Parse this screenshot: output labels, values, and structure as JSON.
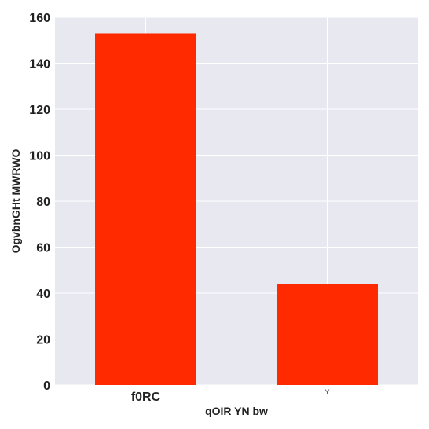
{
  "chart_data": {
    "type": "bar",
    "categories": [
      "f0RC",
      "Y"
    ],
    "values": [
      153,
      44
    ],
    "title": "",
    "xlabel": "qOIR YN bw",
    "ylabel": "OgvbnGHt MWRWO",
    "ylim": [
      0,
      160
    ],
    "yticks": [
      0,
      20,
      40,
      60,
      80,
      100,
      120,
      140,
      160
    ],
    "grid": true,
    "colors": {
      "bar": "#ff2a00",
      "plot_background": "#e8e8f1",
      "grid": "#ffffff"
    }
  }
}
